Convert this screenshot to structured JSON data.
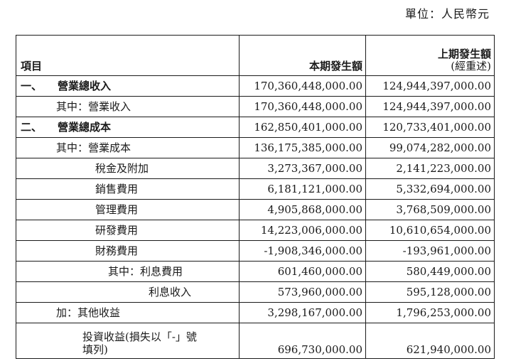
{
  "unit_label": "單位：人民幣元",
  "header": {
    "item": "項目",
    "current": "本期發生額",
    "prior": "上期發生額",
    "prior_note": "(經重述)"
  },
  "rows": [
    {
      "prefix": "一、",
      "label": "營業總收入",
      "current": "170,360,448,000.00",
      "prior": "124,944,397,000.00"
    },
    {
      "label": "其中：營業收入",
      "current": "170,360,448,000.00",
      "prior": "124,944,397,000.00"
    },
    {
      "prefix": "二、",
      "label": "營業總成本",
      "current": "162,850,401,000.00",
      "prior": "120,733,401,000.00"
    },
    {
      "label": "其中：營業成本",
      "current": "136,175,385,000.00",
      "prior": "99,074,282,000.00"
    },
    {
      "label": "稅金及附加",
      "current": "3,273,367,000.00",
      "prior": "2,141,223,000.00"
    },
    {
      "label": "銷售費用",
      "current": "6,181,121,000.00",
      "prior": "5,332,694,000.00"
    },
    {
      "label": "管理費用",
      "current": "4,905,868,000.00",
      "prior": "3,768,509,000.00"
    },
    {
      "label": "研發費用",
      "current": "14,223,006,000.00",
      "prior": "10,610,654,000.00"
    },
    {
      "label": "財務費用",
      "current": "-1,908,346,000.00",
      "prior": "-193,961,000.00"
    },
    {
      "label": "其中：利息費用",
      "current": "601,460,000.00",
      "prior": "580,449,000.00"
    },
    {
      "label": "利息收入",
      "current": "573,960,000.00",
      "prior": "595,128,000.00"
    },
    {
      "label": "加：其他收益",
      "current": "3,298,167,000.00",
      "prior": "1,796,253,000.00"
    },
    {
      "label": "投資收益(損失以「-」號填列)",
      "current": "696,730,000.00",
      "prior": "621,940,000.00"
    }
  ]
}
